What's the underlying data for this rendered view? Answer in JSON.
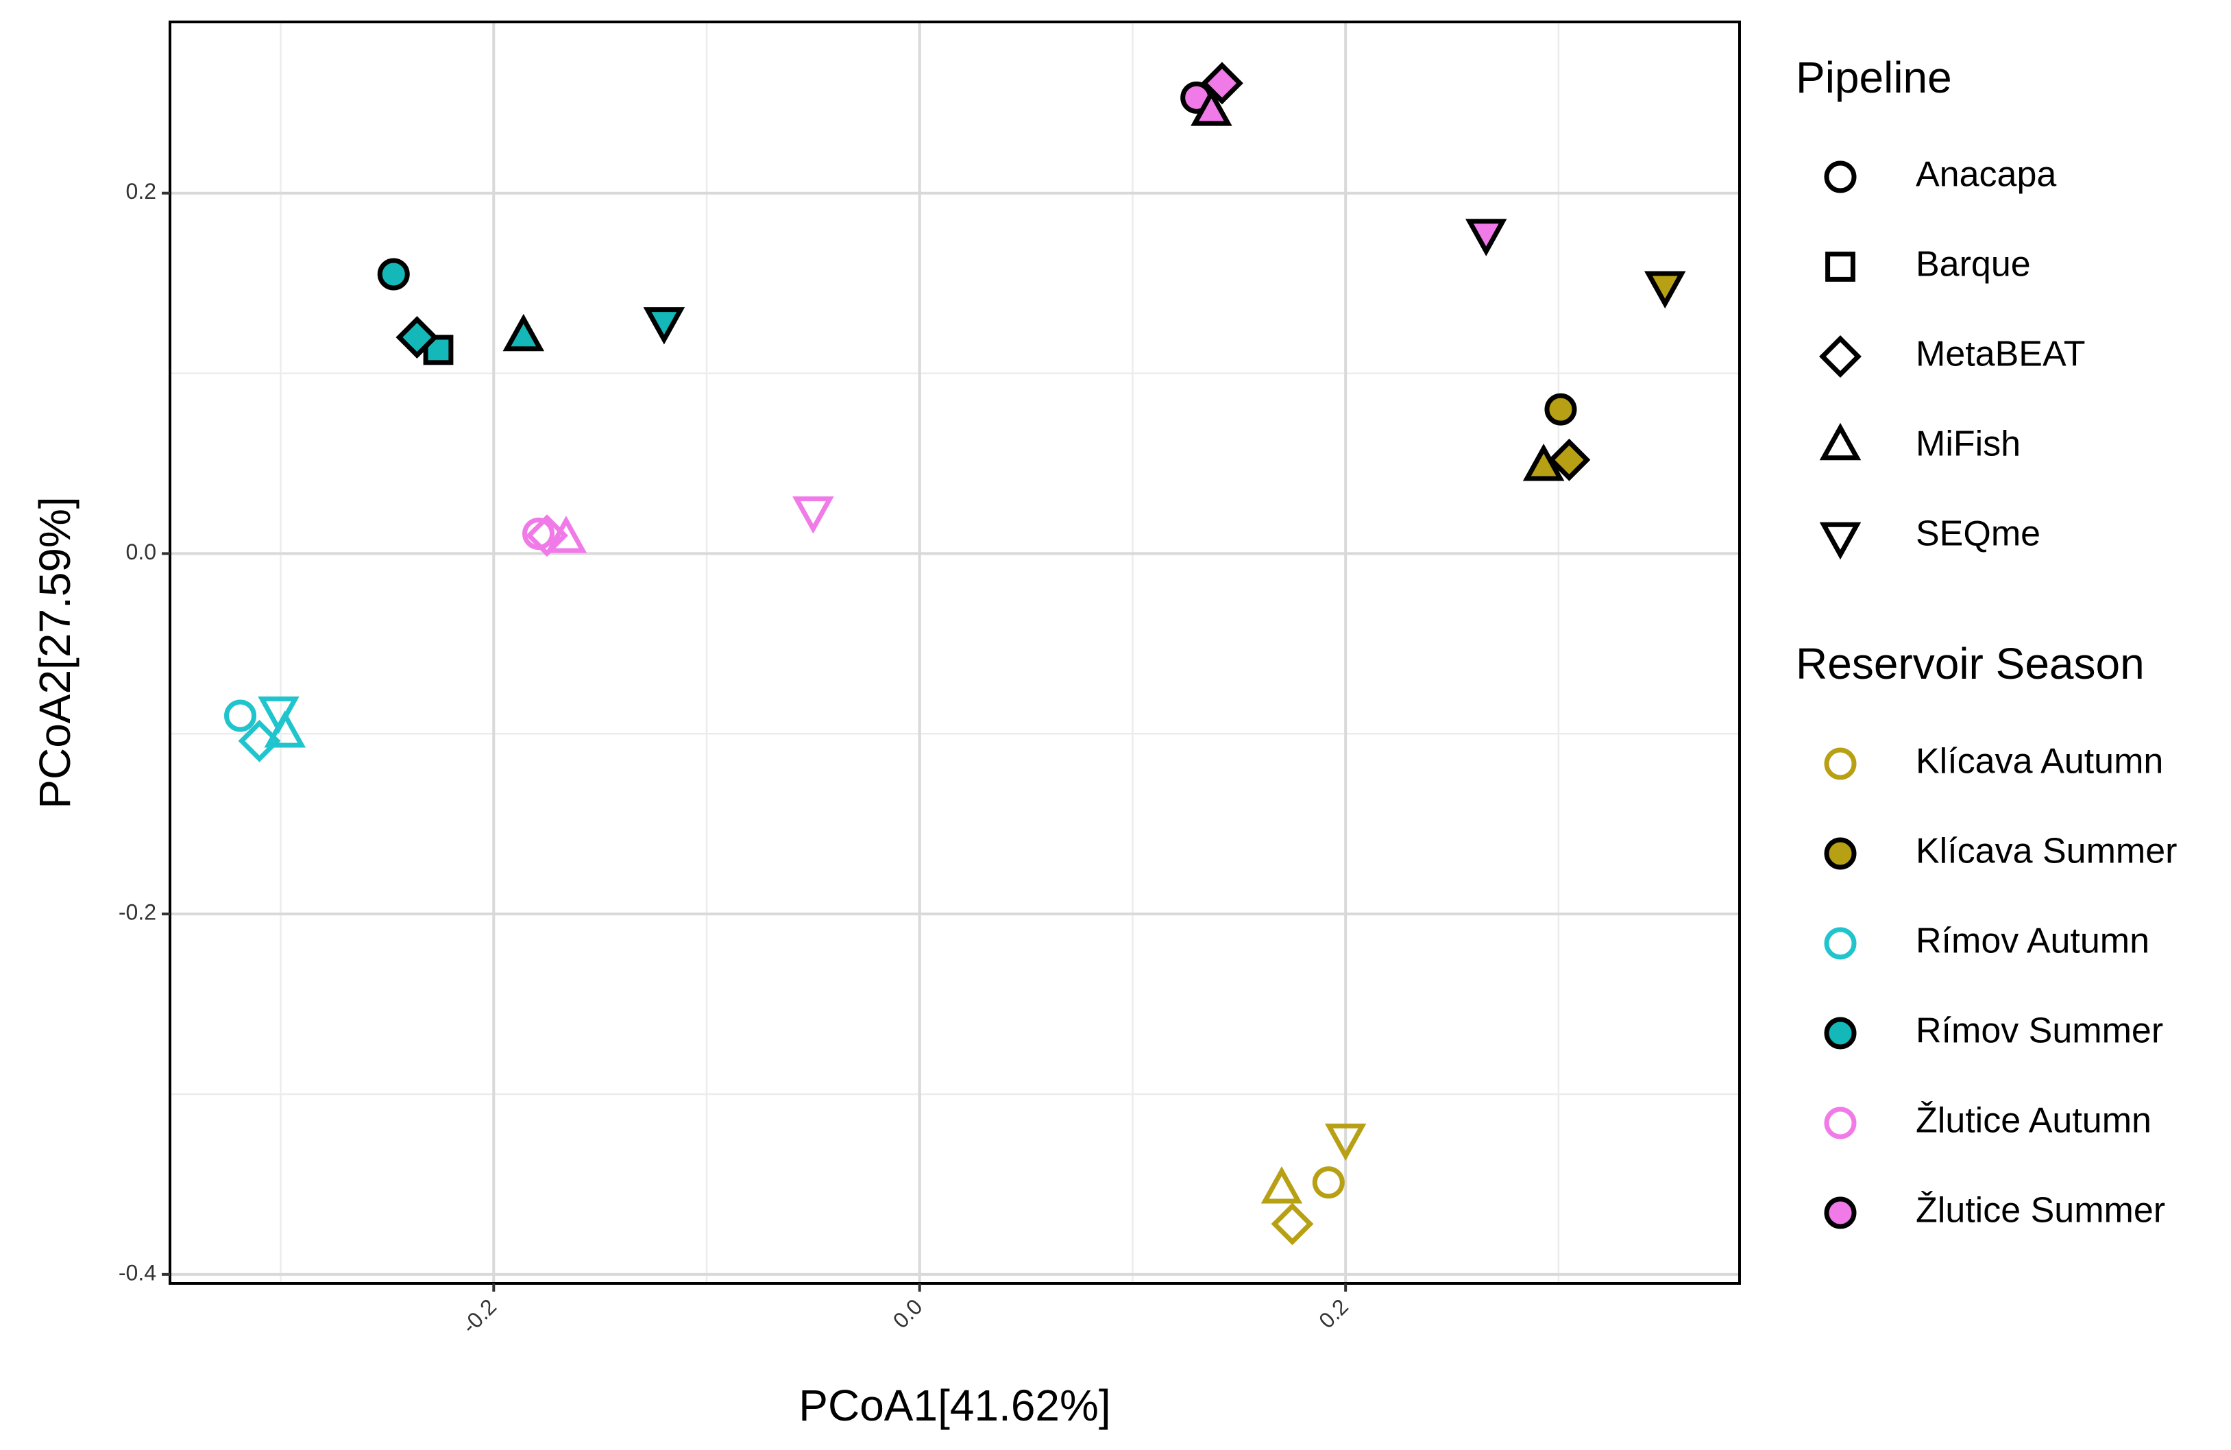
{
  "chart_data": {
    "type": "scatter",
    "xlabel": "PCoA1[41.62%]",
    "ylabel": "PCoA2[27.59%]",
    "xlim": [
      -0.352,
      0.385
    ],
    "ylim": [
      -0.405,
      0.295
    ],
    "x_ticks": [
      -0.2,
      0.0,
      0.2
    ],
    "x_tick_labels": [
      "-0.2",
      "0.0",
      "0.2"
    ],
    "y_ticks": [
      -0.4,
      -0.2,
      0.0,
      0.2
    ],
    "y_tick_labels": [
      "-0.4",
      "-0.2",
      "0.0",
      "0.2"
    ],
    "grid": true,
    "legend_position": "right",
    "shape_legend": {
      "title": "Pipeline",
      "items": [
        {
          "label": "Anacapa",
          "shape": "circle"
        },
        {
          "label": "Barque",
          "shape": "square"
        },
        {
          "label": "MetaBEAT",
          "shape": "diamond"
        },
        {
          "label": "MiFish",
          "shape": "triangle-up"
        },
        {
          "label": "SEQme",
          "shape": "triangle-down"
        }
      ]
    },
    "color_legend": {
      "title": "Reservoir Season",
      "items": [
        {
          "label": "Klícava Autumn",
          "color": "#B8A015",
          "filled": false
        },
        {
          "label": "Klícava Summer",
          "color": "#B8A015",
          "filled": true
        },
        {
          "label": "Rímov Autumn",
          "color": "#1FC4CC",
          "filled": false
        },
        {
          "label": "Rímov Summer",
          "color": "#14B8B8",
          "filled": true
        },
        {
          "label": "Žlutice Autumn",
          "color": "#F07AE8",
          "filled": false
        },
        {
          "label": "Žlutice Summer",
          "color": "#F07AE8",
          "filled": true
        }
      ]
    },
    "series": [
      {
        "name": "Klícava Autumn",
        "color": "#B8A015",
        "filled": false,
        "points": [
          {
            "pipeline": "Anacapa",
            "x": 0.192,
            "y": -0.349
          },
          {
            "pipeline": "MetaBEAT",
            "x": 0.175,
            "y": -0.372
          },
          {
            "pipeline": "MiFish",
            "x": 0.17,
            "y": -0.353
          },
          {
            "pipeline": "SEQme",
            "x": 0.2,
            "y": -0.324
          }
        ]
      },
      {
        "name": "Klícava Summer",
        "color": "#B8A015",
        "filled": true,
        "points": [
          {
            "pipeline": "Anacapa",
            "x": 0.301,
            "y": 0.08
          },
          {
            "pipeline": "MetaBEAT",
            "x": 0.305,
            "y": 0.052
          },
          {
            "pipeline": "MiFish",
            "x": 0.293,
            "y": 0.048
          },
          {
            "pipeline": "SEQme",
            "x": 0.35,
            "y": 0.149
          }
        ]
      },
      {
        "name": "Rímov Autumn",
        "color": "#1FC4CC",
        "filled": false,
        "points": [
          {
            "pipeline": "Anacapa",
            "x": -0.319,
            "y": -0.09
          },
          {
            "pipeline": "MetaBEAT",
            "x": -0.31,
            "y": -0.104
          },
          {
            "pipeline": "MiFish",
            "x": -0.298,
            "y": -0.1
          },
          {
            "pipeline": "SEQme",
            "x": -0.301,
            "y": -0.087
          }
        ]
      },
      {
        "name": "Rímov Summer",
        "color": "#14B8B8",
        "filled": true,
        "points": [
          {
            "pipeline": "Anacapa",
            "x": -0.247,
            "y": 0.155
          },
          {
            "pipeline": "Barque",
            "x": -0.226,
            "y": 0.113
          },
          {
            "pipeline": "MetaBEAT",
            "x": -0.236,
            "y": 0.12
          },
          {
            "pipeline": "MiFish",
            "x": -0.186,
            "y": 0.12
          },
          {
            "pipeline": "SEQme",
            "x": -0.12,
            "y": 0.129
          }
        ]
      },
      {
        "name": "Žlutice Autumn",
        "color": "#F07AE8",
        "filled": false,
        "points": [
          {
            "pipeline": "Anacapa",
            "x": -0.179,
            "y": 0.011
          },
          {
            "pipeline": "MetaBEAT",
            "x": -0.175,
            "y": 0.01
          },
          {
            "pipeline": "MiFish",
            "x": -0.166,
            "y": 0.008
          },
          {
            "pipeline": "SEQme",
            "x": -0.05,
            "y": 0.024
          }
        ]
      },
      {
        "name": "Žlutice Summer",
        "color": "#F07AE8",
        "filled": true,
        "points": [
          {
            "pipeline": "Anacapa",
            "x": 0.13,
            "y": 0.253
          },
          {
            "pipeline": "MetaBEAT",
            "x": 0.142,
            "y": 0.261
          },
          {
            "pipeline": "MiFish",
            "x": 0.137,
            "y": 0.245
          },
          {
            "pipeline": "SEQme",
            "x": 0.266,
            "y": 0.178
          }
        ]
      }
    ]
  }
}
